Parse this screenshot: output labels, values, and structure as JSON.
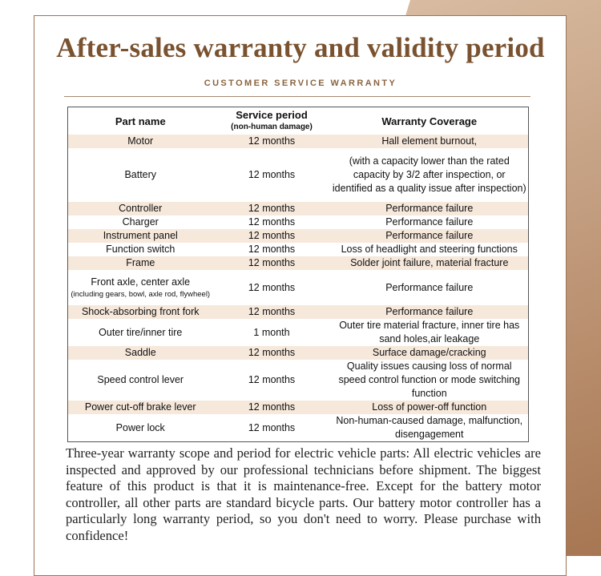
{
  "title": "After-sales warranty and validity period",
  "subtitle": "CUSTOMER SERVICE WARRANTY",
  "table": {
    "headers": {
      "part": "Part name",
      "period": "Service period",
      "period_note": "(non-human damage)",
      "coverage": "Warranty Coverage"
    },
    "rows": [
      {
        "part": "Motor",
        "period": "12 months",
        "coverage": "Hall element burnout,"
      },
      {
        "part": "Battery",
        "period": "12 months",
        "coverage": "(with a capacity lower than the rated capacity by 3/2 after inspection, or identified as a quality issue after inspection)"
      },
      {
        "part": "Controller",
        "period": "12 months",
        "coverage": "Performance failure"
      },
      {
        "part": "Charger",
        "period": "12 months",
        "coverage": "Performance failure"
      },
      {
        "part": "Instrument panel",
        "period": "12 months",
        "coverage": "Performance failure"
      },
      {
        "part": "Function switch",
        "period": "12 months",
        "coverage": "Loss of headlight and steering functions"
      },
      {
        "part": "Frame",
        "period": "12 months",
        "coverage": "Solder joint failure, material fracture"
      },
      {
        "part": "Front axle, center axle",
        "part_note": "(including gears, bowl, axle rod, flywheel)",
        "period": "12 months",
        "coverage": "Performance failure"
      },
      {
        "part": "Shock-absorbing front fork",
        "period": "12 months",
        "coverage": "Performance failure"
      },
      {
        "part": "Outer tire/inner tire",
        "period": "1 month",
        "coverage": "Outer tire material fracture, inner tire has sand holes,air leakage"
      },
      {
        "part": "Saddle",
        "period": "12 months",
        "coverage": "Surface damage/cracking"
      },
      {
        "part": "Speed control lever",
        "period": "12 months",
        "coverage": "Quality issues causing loss of normal speed control function or mode switching function"
      },
      {
        "part": "Power cut-off brake lever",
        "period": "12 months",
        "coverage": "Loss of power-off function"
      },
      {
        "part": "Power lock",
        "period": "12 months",
        "coverage": "Non-human-caused damage, malfunction, disengagement"
      }
    ]
  },
  "paragraph": "Three-year warranty scope and period for electric vehicle parts: All electric vehicles are inspected and approved by our professional technicians before shipment. The biggest feature of this product is that it is maintenance-free. Except for the battery motor controller, all other parts are standard bicycle parts. Our battery motor controller has a particularly long warranty period, so you don't need to worry. Please purchase with confidence!",
  "colors": {
    "accent": "#7a5230",
    "row_shade": "#f6e8db"
  }
}
